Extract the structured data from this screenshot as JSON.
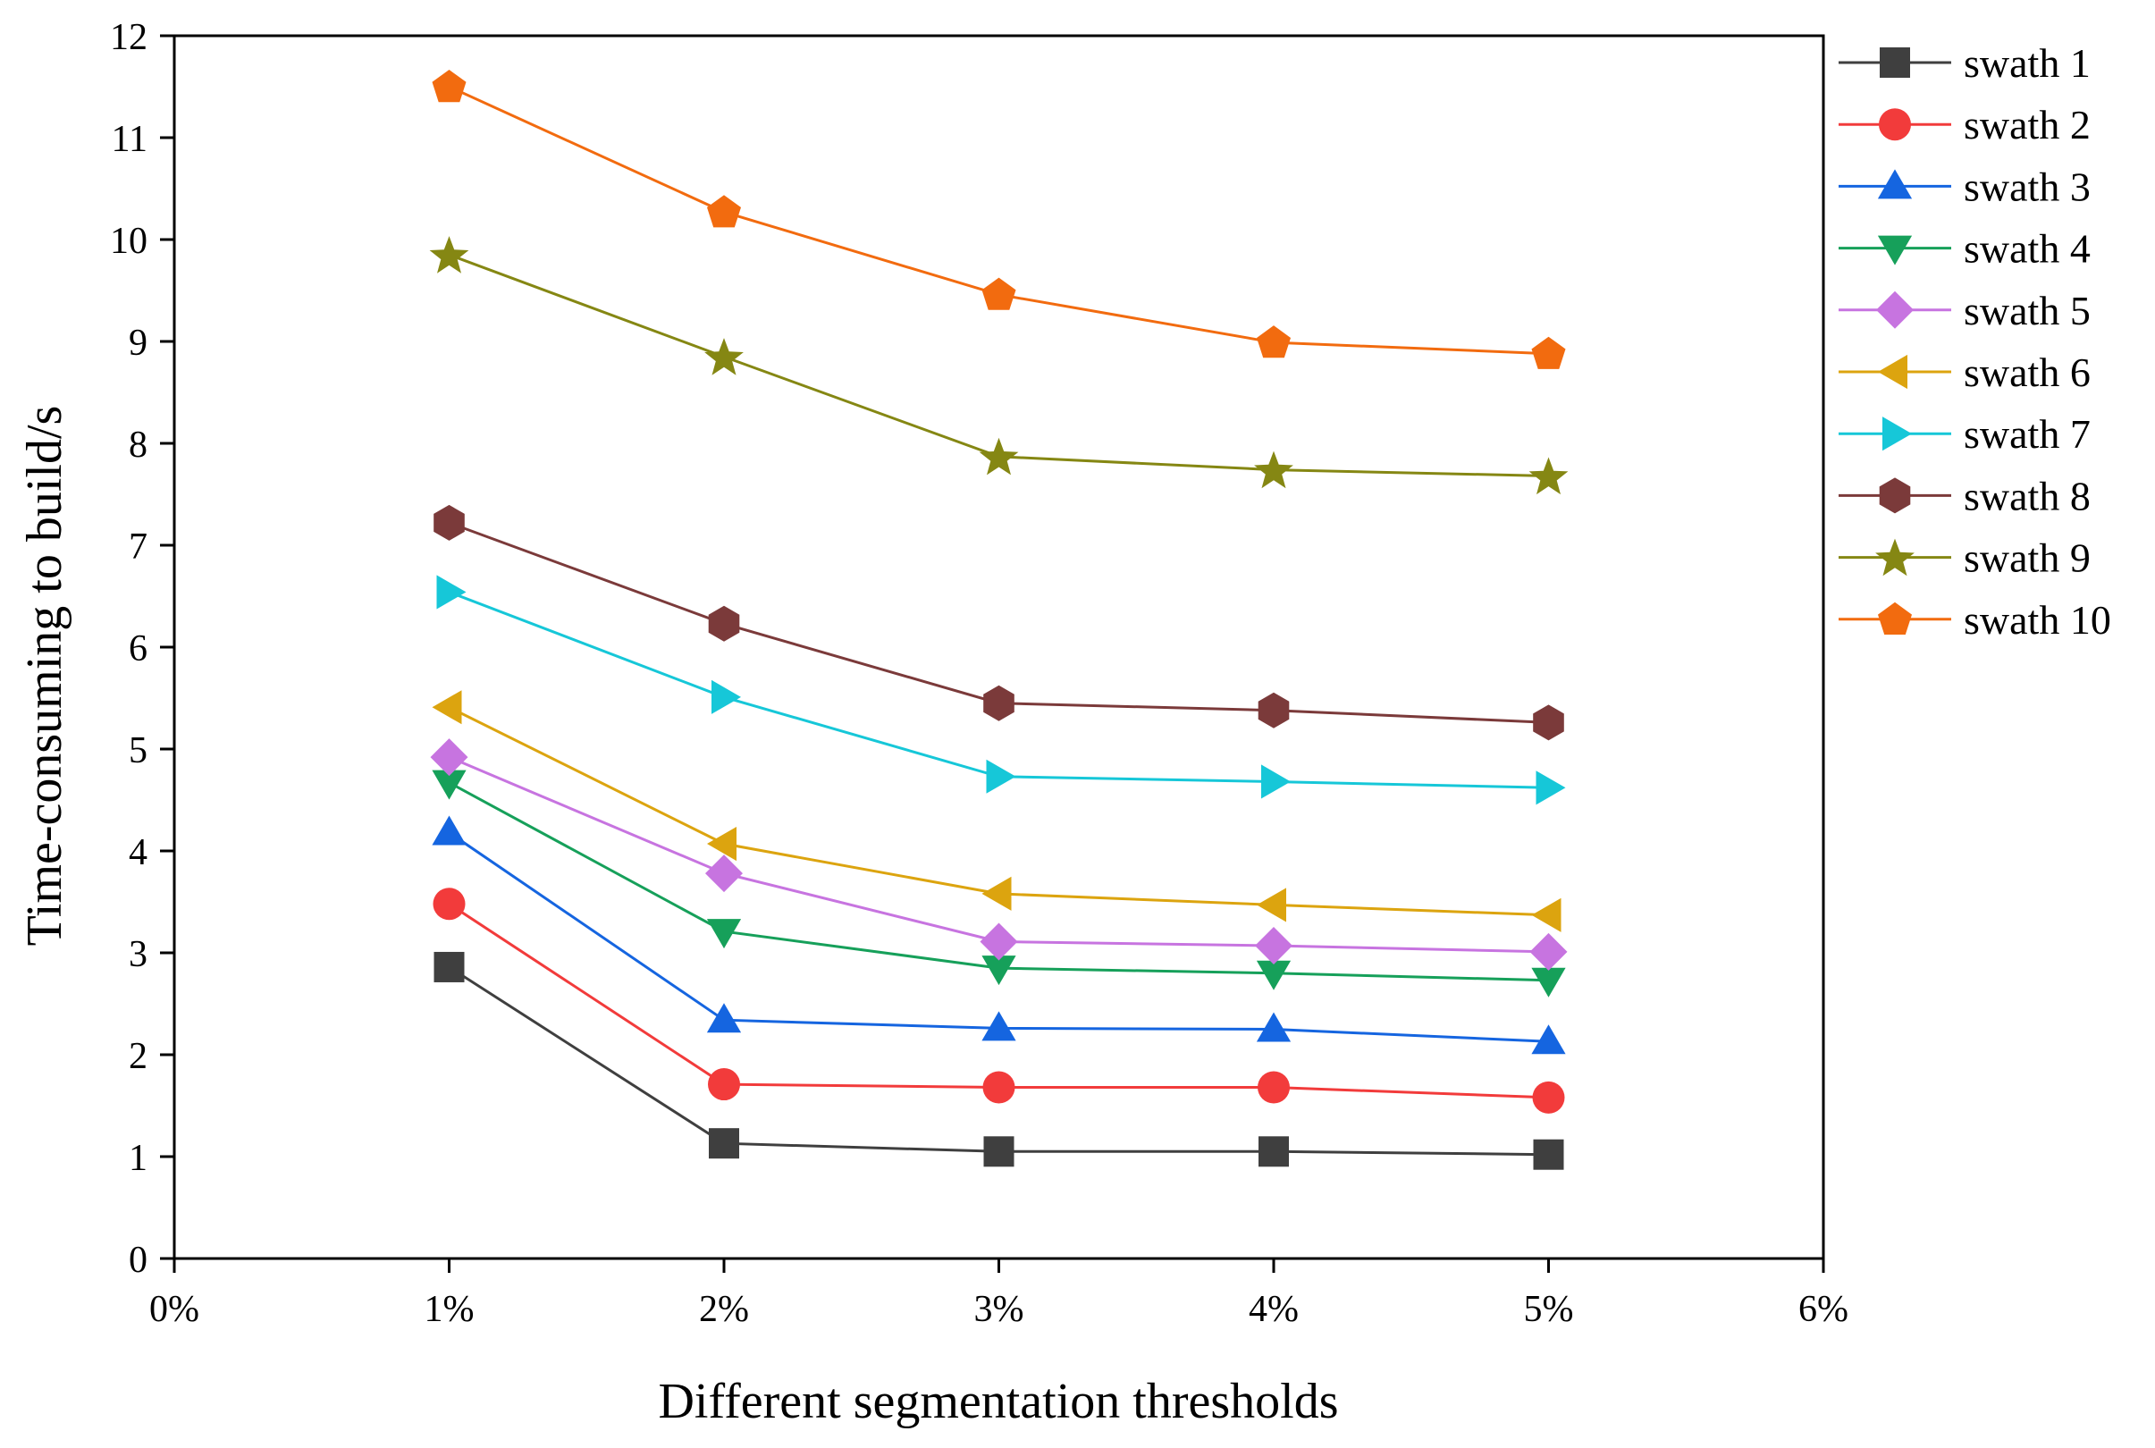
{
  "chart_data": {
    "type": "line",
    "title": "",
    "xlabel": "Different segmentation thresholds",
    "ylabel": "Time-consuming to build/s",
    "x": [
      1,
      2,
      3,
      4,
      5
    ],
    "xlim": [
      0,
      6
    ],
    "ylim": [
      0,
      12
    ],
    "xticks": [
      {
        "value": 0,
        "label": "0%"
      },
      {
        "value": 1,
        "label": "1%"
      },
      {
        "value": 2,
        "label": "2%"
      },
      {
        "value": 3,
        "label": "3%"
      },
      {
        "value": 4,
        "label": "4%"
      },
      {
        "value": 5,
        "label": "5%"
      },
      {
        "value": 6,
        "label": "6%"
      }
    ],
    "yticks": [
      {
        "value": 0,
        "label": "0"
      },
      {
        "value": 1,
        "label": "1"
      },
      {
        "value": 2,
        "label": "2"
      },
      {
        "value": 3,
        "label": "3"
      },
      {
        "value": 4,
        "label": "4"
      },
      {
        "value": 5,
        "label": "5"
      },
      {
        "value": 6,
        "label": "6"
      },
      {
        "value": 7,
        "label": "7"
      },
      {
        "value": 8,
        "label": "8"
      },
      {
        "value": 9,
        "label": "9"
      },
      {
        "value": 10,
        "label": "10"
      },
      {
        "value": 11,
        "label": "11"
      },
      {
        "value": 12,
        "label": "12"
      }
    ],
    "grid": false,
    "legend_position": "right",
    "series": [
      {
        "name": "swath 1",
        "color": "#3f3f3f",
        "marker": "square",
        "values": [
          2.86,
          1.13,
          1.05,
          1.05,
          1.02
        ]
      },
      {
        "name": "swath 2",
        "color": "#f23b3b",
        "marker": "circle",
        "values": [
          3.48,
          1.71,
          1.68,
          1.68,
          1.58
        ]
      },
      {
        "name": "swath 3",
        "color": "#1565e0",
        "marker": "triangle-up",
        "values": [
          4.18,
          2.34,
          2.26,
          2.25,
          2.13
        ]
      },
      {
        "name": "swath 4",
        "color": "#16a05a",
        "marker": "triangle-down",
        "values": [
          4.67,
          3.21,
          2.85,
          2.8,
          2.73
        ]
      },
      {
        "name": "swath 5",
        "color": "#c774e0",
        "marker": "diamond",
        "values": [
          4.92,
          3.78,
          3.11,
          3.07,
          3.01
        ]
      },
      {
        "name": "swath 6",
        "color": "#dca40f",
        "marker": "triangle-left",
        "values": [
          5.41,
          4.07,
          3.58,
          3.47,
          3.37
        ]
      },
      {
        "name": "swath 7",
        "color": "#16c7d8",
        "marker": "triangle-right",
        "values": [
          6.54,
          5.51,
          4.73,
          4.68,
          4.62
        ]
      },
      {
        "name": "swath 8",
        "color": "#7b3a3a",
        "marker": "hexagon",
        "values": [
          7.22,
          6.23,
          5.45,
          5.38,
          5.26
        ]
      },
      {
        "name": "swath 9",
        "color": "#858713",
        "marker": "star",
        "values": [
          9.85,
          8.85,
          7.87,
          7.74,
          7.68
        ]
      },
      {
        "name": "swath 10",
        "color": "#f26b0f",
        "marker": "pentagon",
        "values": [
          11.5,
          10.27,
          9.46,
          8.99,
          8.88
        ]
      }
    ]
  }
}
